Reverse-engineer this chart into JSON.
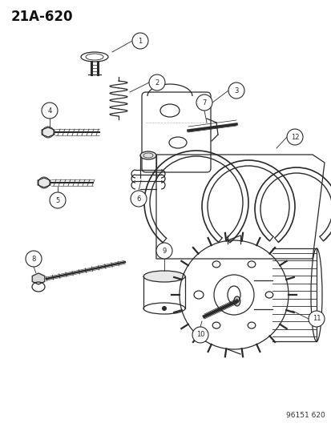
{
  "title": "21A-620",
  "watermark": "96151 620",
  "background_color": "#ffffff",
  "line_color": "#2a2a2a",
  "figsize": [
    4.14,
    5.33
  ],
  "dpi": 100
}
